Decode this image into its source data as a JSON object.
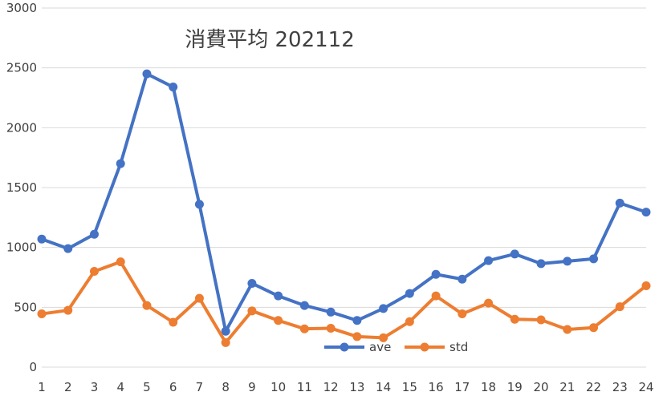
{
  "chart_data": {
    "type": "line",
    "title": "消費平均 202112",
    "xlabel": "",
    "ylabel": "",
    "categories": [
      "1",
      "2",
      "3",
      "4",
      "5",
      "6",
      "7",
      "8",
      "9",
      "10",
      "11",
      "12",
      "13",
      "14",
      "15",
      "16",
      "17",
      "18",
      "19",
      "20",
      "21",
      "22",
      "23",
      "24"
    ],
    "ylim": [
      0,
      3000
    ],
    "yticks": [
      "0",
      "500",
      "1000",
      "1500",
      "2000",
      "2500",
      "3000"
    ],
    "grid": true,
    "legend_position": "bottom-center (inside plot)",
    "series": [
      {
        "name": "ave",
        "color": "#4472c4",
        "values": [
          1070,
          990,
          1110,
          1700,
          2450,
          2340,
          1360,
          300,
          700,
          595,
          515,
          460,
          390,
          490,
          615,
          775,
          735,
          890,
          945,
          865,
          885,
          905,
          1370,
          1295
        ]
      },
      {
        "name": "std",
        "color": "#ed7d31",
        "values": [
          445,
          475,
          800,
          880,
          515,
          375,
          575,
          205,
          470,
          390,
          320,
          325,
          255,
          245,
          380,
          595,
          445,
          535,
          400,
          395,
          315,
          330,
          505,
          680
        ]
      }
    ]
  }
}
